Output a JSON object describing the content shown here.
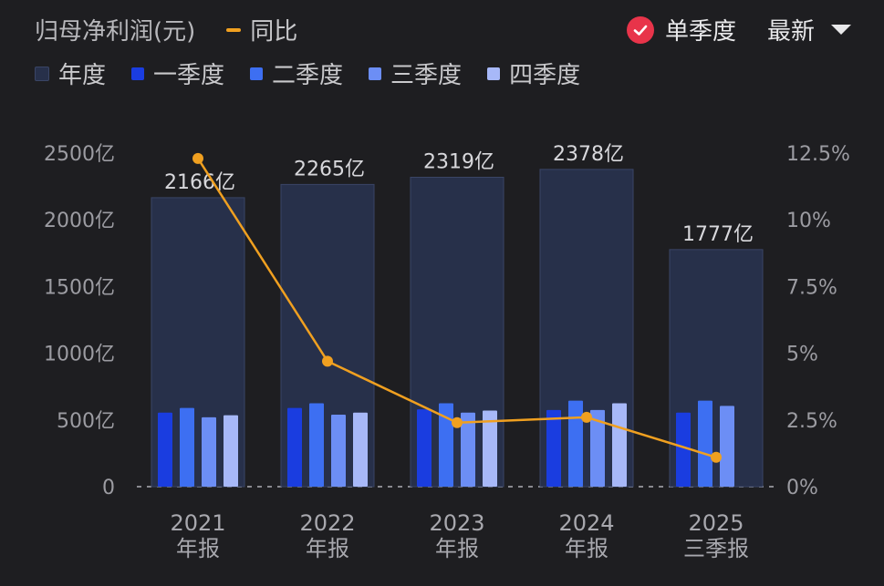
{
  "header": {
    "title": "归母净利润(元)",
    "yoy_label": "同比",
    "toggle_label": "单季度",
    "period_select": "最新"
  },
  "legend": [
    {
      "name": "年度",
      "color": "#27304a"
    },
    {
      "name": "一季度",
      "color": "#1a3de0"
    },
    {
      "name": "二季度",
      "color": "#3d6ff2"
    },
    {
      "name": "三季度",
      "color": "#6c8ef5"
    },
    {
      "name": "四季度",
      "color": "#a7b8f8"
    }
  ],
  "chart_data": {
    "type": "bar",
    "categories": [
      {
        "year": "2021",
        "period": "年报"
      },
      {
        "year": "2022",
        "period": "年报"
      },
      {
        "year": "2023",
        "period": "年报"
      },
      {
        "year": "2024",
        "period": "年报"
      },
      {
        "year": "2025",
        "period": "三季报"
      }
    ],
    "annual": [
      2166,
      2265,
      2319,
      2378,
      1777
    ],
    "annual_labels": [
      "2166亿",
      "2265亿",
      "2319亿",
      "2378亿",
      "1777亿"
    ],
    "quarters": [
      [
        555,
        590,
        520,
        535
      ],
      [
        590,
        625,
        540,
        555
      ],
      [
        580,
        625,
        555,
        570
      ],
      [
        575,
        645,
        575,
        625
      ],
      [
        555,
        645,
        605,
        null
      ]
    ],
    "yoy_pct": [
      12.3,
      4.7,
      2.4,
      2.6,
      1.1
    ],
    "y_left": {
      "min": 0,
      "max": 2500,
      "ticks": [
        "0",
        "500亿",
        "1000亿",
        "1500亿",
        "2000亿",
        "2500亿"
      ]
    },
    "y_right": {
      "min": 0,
      "max": 12.5,
      "ticks": [
        "0%",
        "2.5%",
        "5%",
        "7.5%",
        "10%",
        "12.5%"
      ]
    },
    "colors": {
      "annual_fill": "#27304a",
      "annual_stroke": "#3a4566",
      "q1": "#1a3de0",
      "q2": "#3d6ff2",
      "q3": "#6c8ef5",
      "q4": "#a7b8f8",
      "yoy": "#f0a020"
    }
  }
}
